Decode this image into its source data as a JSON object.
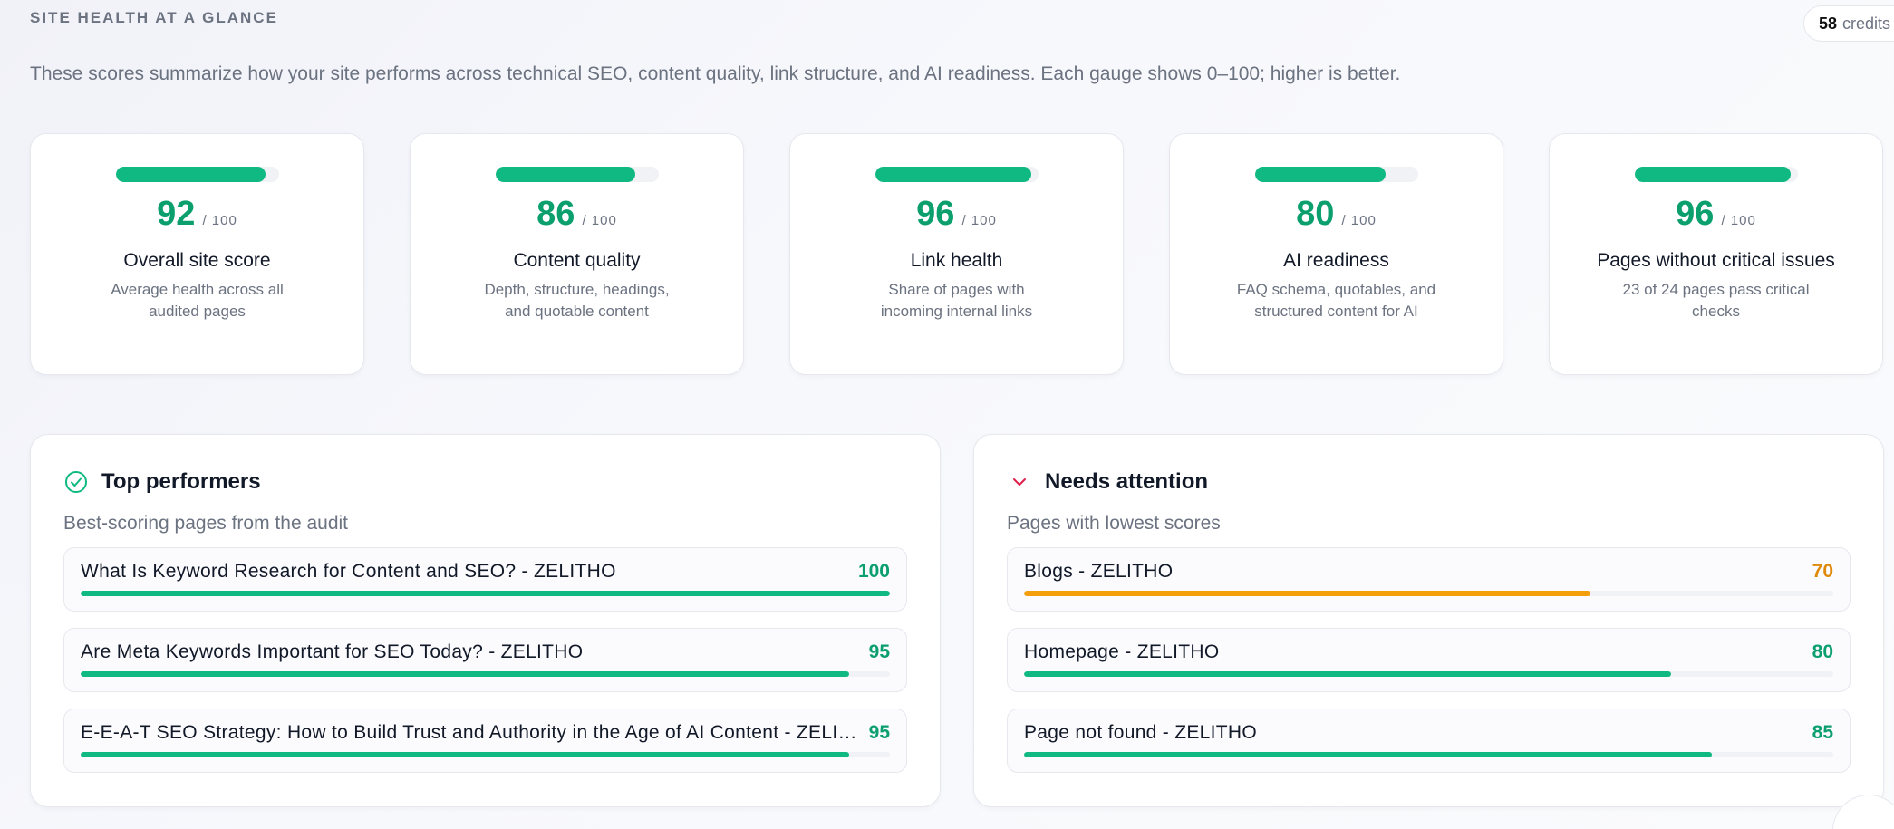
{
  "header": {
    "section_title": "SITE HEALTH AT A GLANCE",
    "credits_count": "58",
    "credits_label": "credits",
    "intro": "These scores summarize how your site performs across technical SEO, content quality, link structure, and AI readiness. Each gauge shows 0–100; higher is better."
  },
  "cards": [
    {
      "score": "92",
      "outof": "/ 100",
      "percent": 92,
      "title": "Overall site score",
      "desc": "Average health across all audited pages"
    },
    {
      "score": "86",
      "outof": "/ 100",
      "percent": 86,
      "title": "Content quality",
      "desc": "Depth, structure, headings, and quotable content"
    },
    {
      "score": "96",
      "outof": "/ 100",
      "percent": 96,
      "title": "Link health",
      "desc": "Share of pages with incoming internal links"
    },
    {
      "score": "80",
      "outof": "/ 100",
      "percent": 80,
      "title": "AI readiness",
      "desc": "FAQ schema, quotables, and structured content for AI"
    },
    {
      "score": "96",
      "outof": "/ 100",
      "percent": 96,
      "title": "Pages without critical issues",
      "desc": "23 of 24 pages pass critical checks"
    }
  ],
  "top_performers": {
    "title": "Top performers",
    "subtitle": "Best-scoring pages from the audit",
    "icon": "check-circle-icon",
    "rows": [
      {
        "name": "What Is Keyword Research for Content and SEO? - ZELITHO",
        "score": "100",
        "percent": 100
      },
      {
        "name": "Are Meta Keywords Important for SEO Today? - ZELITHO",
        "score": "95",
        "percent": 95
      },
      {
        "name": "E-E-A-T SEO Strategy: How to Build Trust and Authority in the Age of AI Content - ZELITHO",
        "score": "95",
        "percent": 95
      }
    ]
  },
  "needs_attention": {
    "title": "Needs attention",
    "subtitle": "Pages with lowest scores",
    "icon": "chevron-down-icon",
    "rows": [
      {
        "name": "Blogs - ZELITHO",
        "score": "70",
        "percent": 70,
        "status": "warn"
      },
      {
        "name": "Homepage - ZELITHO",
        "score": "80",
        "percent": 80,
        "status": "good"
      },
      {
        "name": "Page not found - ZELITHO",
        "score": "85",
        "percent": 85,
        "status": "good"
      }
    ]
  },
  "colors": {
    "good": "#10b981",
    "warn": "#f59e0b",
    "score_text": "#0b9f6e"
  }
}
